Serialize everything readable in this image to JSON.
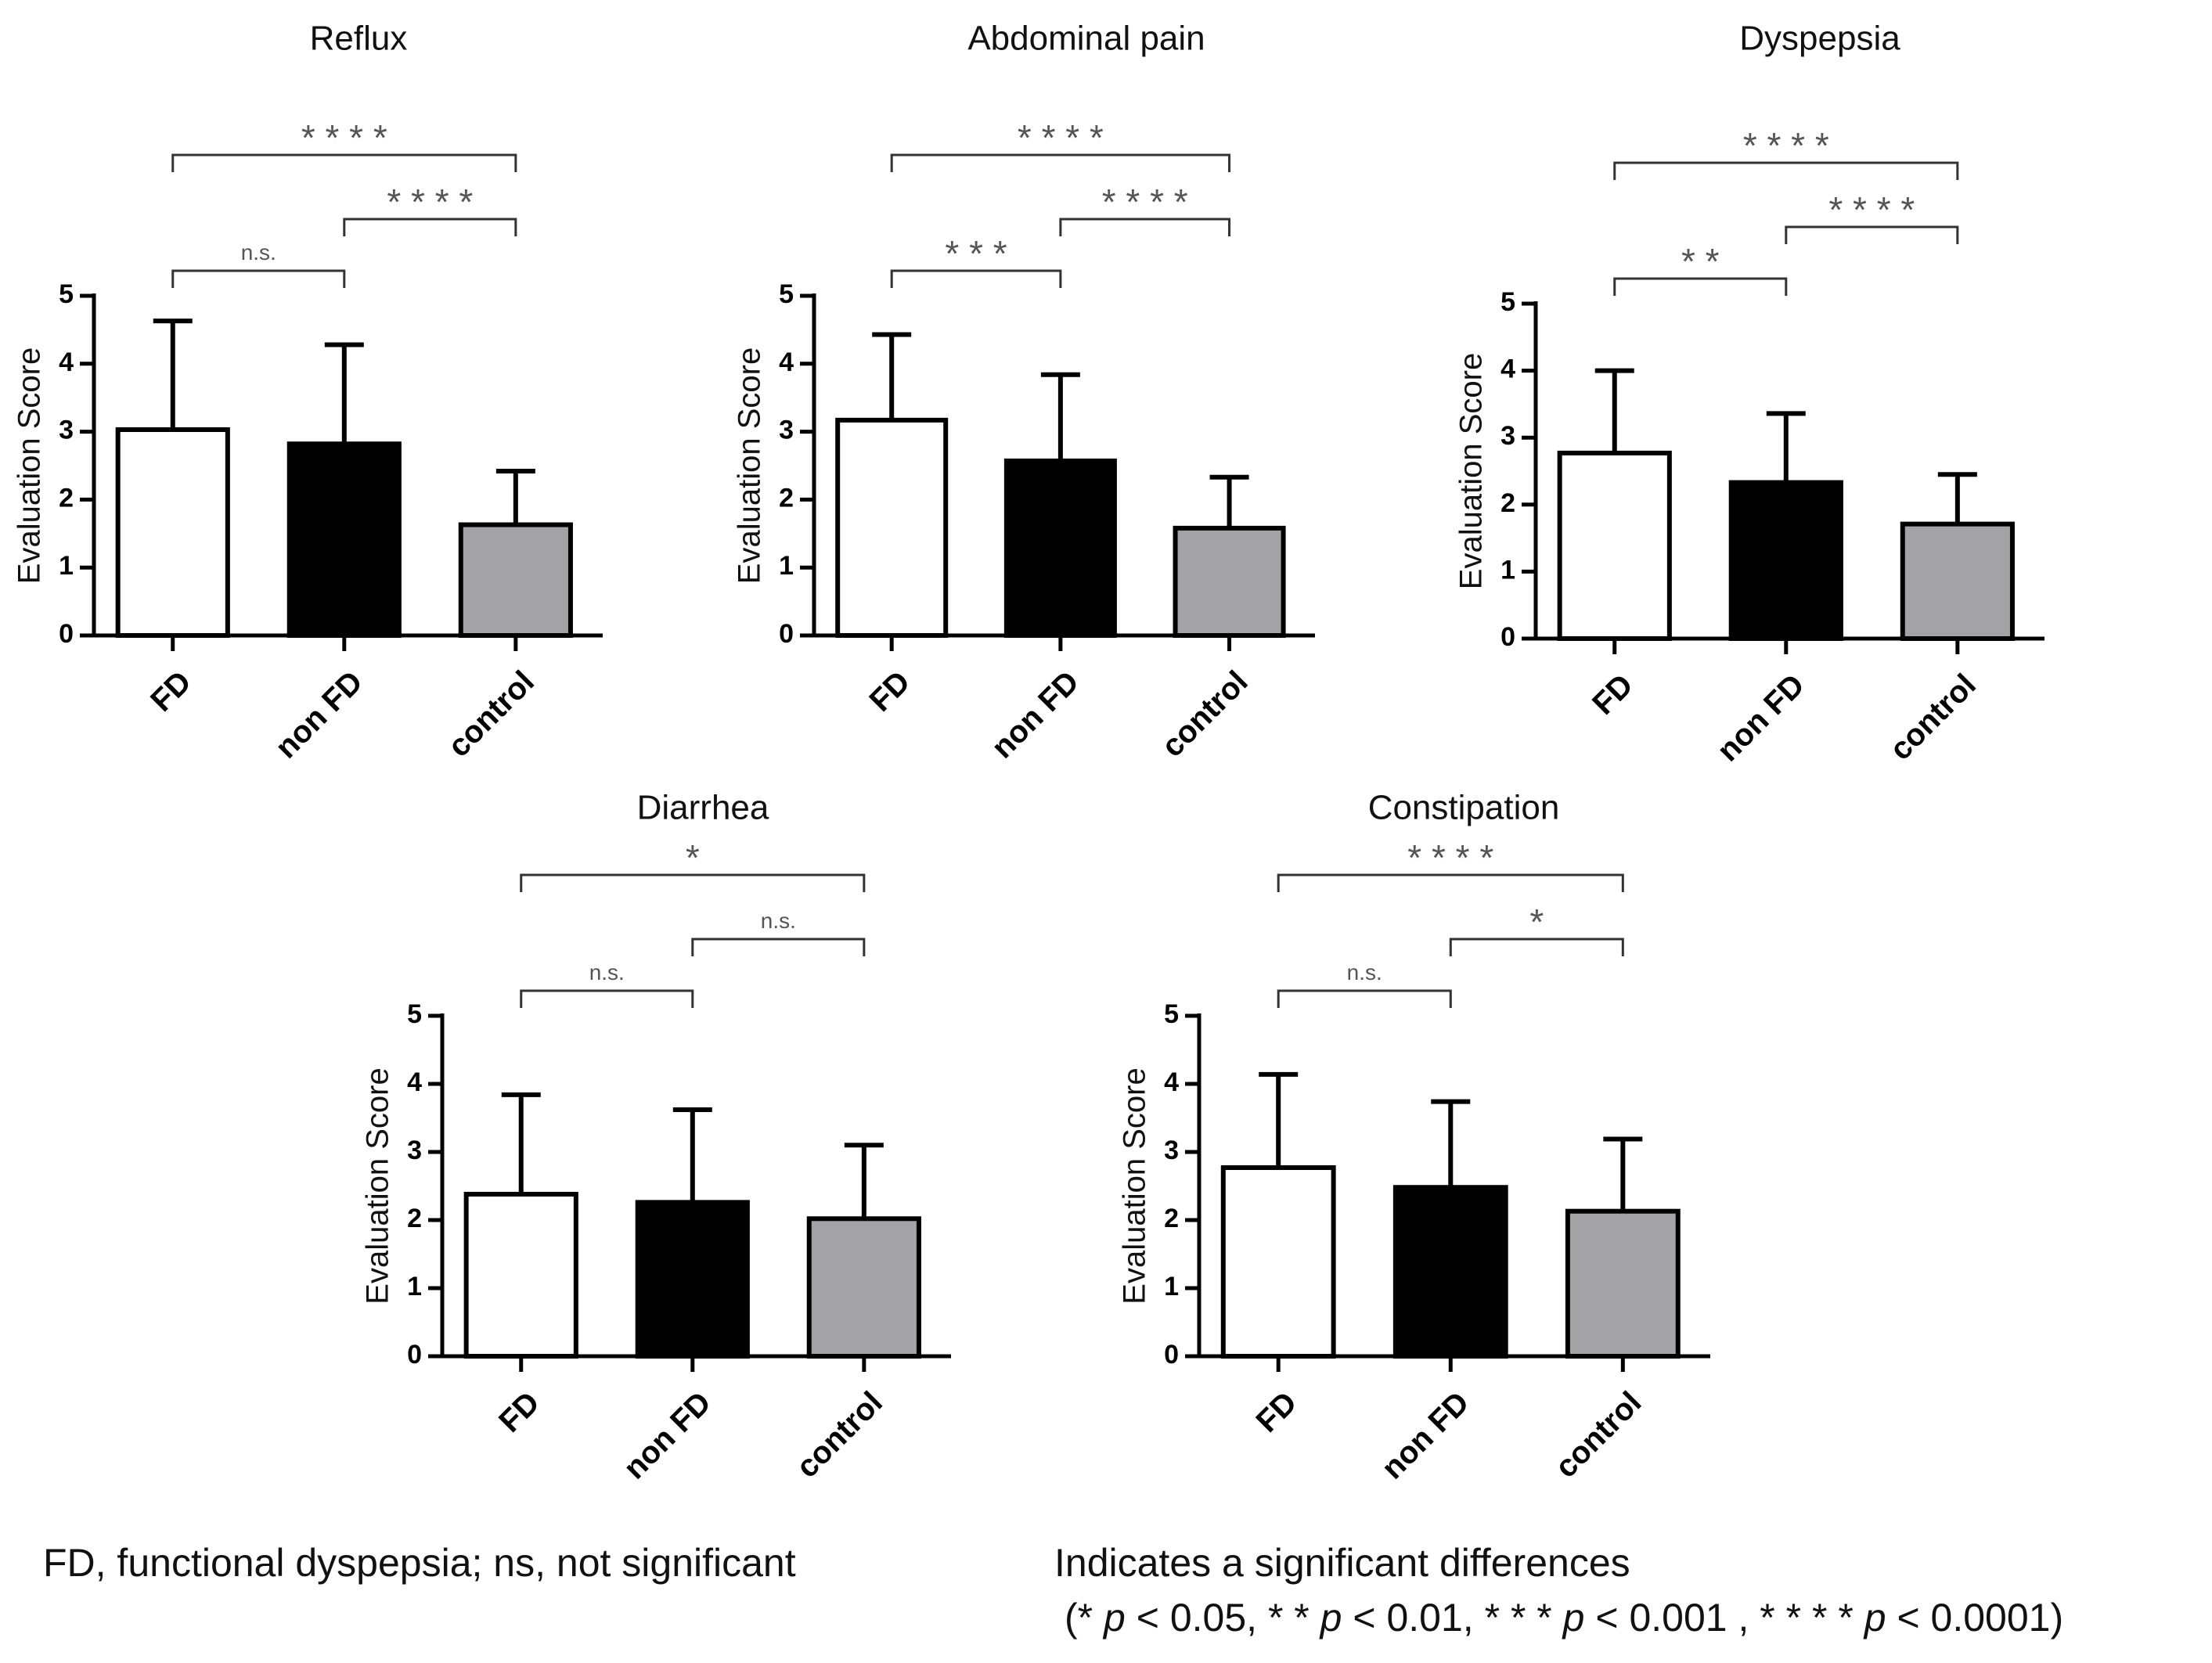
{
  "colors": {
    "FD": "#ffffff",
    "non FD": "#000000",
    "control": "#a3a3a6",
    "axis": "#000000",
    "stars": "#555555"
  },
  "chart_data": [
    {
      "type": "bar",
      "title": "Reflux",
      "ylabel": "Evaluation Score",
      "ylim": [
        0,
        5
      ],
      "yticks": [
        "0",
        "1",
        "2",
        "3",
        "4",
        "5"
      ],
      "categories": [
        "FD",
        "non FD",
        "control"
      ],
      "values": [
        3.03,
        2.82,
        1.63
      ],
      "errors": [
        1.6,
        1.46,
        0.79
      ],
      "comparisons": [
        {
          "from": 0,
          "to": 2,
          "label": "* * * *",
          "level": 2
        },
        {
          "from": 1,
          "to": 2,
          "label": "* * * *",
          "level": 1
        },
        {
          "from": 0,
          "to": 1,
          "label": "n.s.",
          "level": 0
        }
      ]
    },
    {
      "type": "bar",
      "title": "Abdominal pain",
      "ylabel": "Evaluation Score",
      "ylim": [
        0,
        5
      ],
      "yticks": [
        "0",
        "1",
        "2",
        "3",
        "4",
        "5"
      ],
      "categories": [
        "FD",
        "non FD",
        "control"
      ],
      "values": [
        3.17,
        2.57,
        1.58
      ],
      "errors": [
        1.26,
        1.27,
        0.75
      ],
      "comparisons": [
        {
          "from": 0,
          "to": 2,
          "label": "* * * *",
          "level": 2
        },
        {
          "from": 1,
          "to": 2,
          "label": "* * * *",
          "level": 1
        },
        {
          "from": 0,
          "to": 1,
          "label": "* * *",
          "level": 0
        }
      ]
    },
    {
      "type": "bar",
      "title": "Dyspepsia",
      "ylabel": "Evaluation Score",
      "ylim": [
        0,
        5
      ],
      "yticks": [
        "0",
        "1",
        "2",
        "3",
        "4",
        "5"
      ],
      "categories": [
        "FD",
        "non FD",
        "control"
      ],
      "values": [
        2.77,
        2.33,
        1.71
      ],
      "errors": [
        1.23,
        1.03,
        0.74
      ],
      "comparisons": [
        {
          "from": 0,
          "to": 2,
          "label": "* * * *",
          "level": 2
        },
        {
          "from": 1,
          "to": 2,
          "label": "* * * *",
          "level": 1
        },
        {
          "from": 0,
          "to": 1,
          "label": "* *",
          "level": 0
        }
      ]
    },
    {
      "type": "bar",
      "title": "Diarrhea",
      "ylabel": "Evaluation Score",
      "ylim": [
        0,
        5
      ],
      "yticks": [
        "0",
        "1",
        "2",
        "3",
        "4",
        "5"
      ],
      "categories": [
        "FD",
        "non FD",
        "control"
      ],
      "values": [
        2.38,
        2.26,
        2.02
      ],
      "errors": [
        1.46,
        1.36,
        1.08
      ],
      "comparisons": [
        {
          "from": 0,
          "to": 2,
          "label": "*",
          "level": 2
        },
        {
          "from": 1,
          "to": 2,
          "label": "n.s.",
          "level": 1
        },
        {
          "from": 0,
          "to": 1,
          "label": "n.s.",
          "level": 0
        }
      ]
    },
    {
      "type": "bar",
      "title": "Constipation",
      "ylabel": "Evaluation Score",
      "ylim": [
        0,
        5
      ],
      "yticks": [
        "0",
        "1",
        "2",
        "3",
        "4",
        "5"
      ],
      "categories": [
        "FD",
        "non FD",
        "control"
      ],
      "values": [
        2.77,
        2.48,
        2.13
      ],
      "errors": [
        1.37,
        1.26,
        1.06
      ],
      "comparisons": [
        {
          "from": 0,
          "to": 2,
          "label": "* * * *",
          "level": 2
        },
        {
          "from": 1,
          "to": 2,
          "label": "*",
          "level": 1
        },
        {
          "from": 0,
          "to": 1,
          "label": "n.s.",
          "level": 0
        }
      ]
    }
  ],
  "footnote_left": "FD, functional dyspepsia; ns, not significant",
  "footnote_right_line1": "Indicates a significant differences",
  "footnote_right_line2": {
    "open": "(",
    "items": [
      {
        "stars": "*",
        "p": "p",
        "rest": "< 0.05,"
      },
      {
        "stars": "* *",
        "p": "p",
        "rest": "< 0.01,"
      },
      {
        "stars": "* * *",
        "p": "p",
        "rest": "< 0.001 ,"
      },
      {
        "stars": "* * * *",
        "p": "p",
        "rest": "< 0.0001"
      }
    ],
    "close": ")"
  }
}
